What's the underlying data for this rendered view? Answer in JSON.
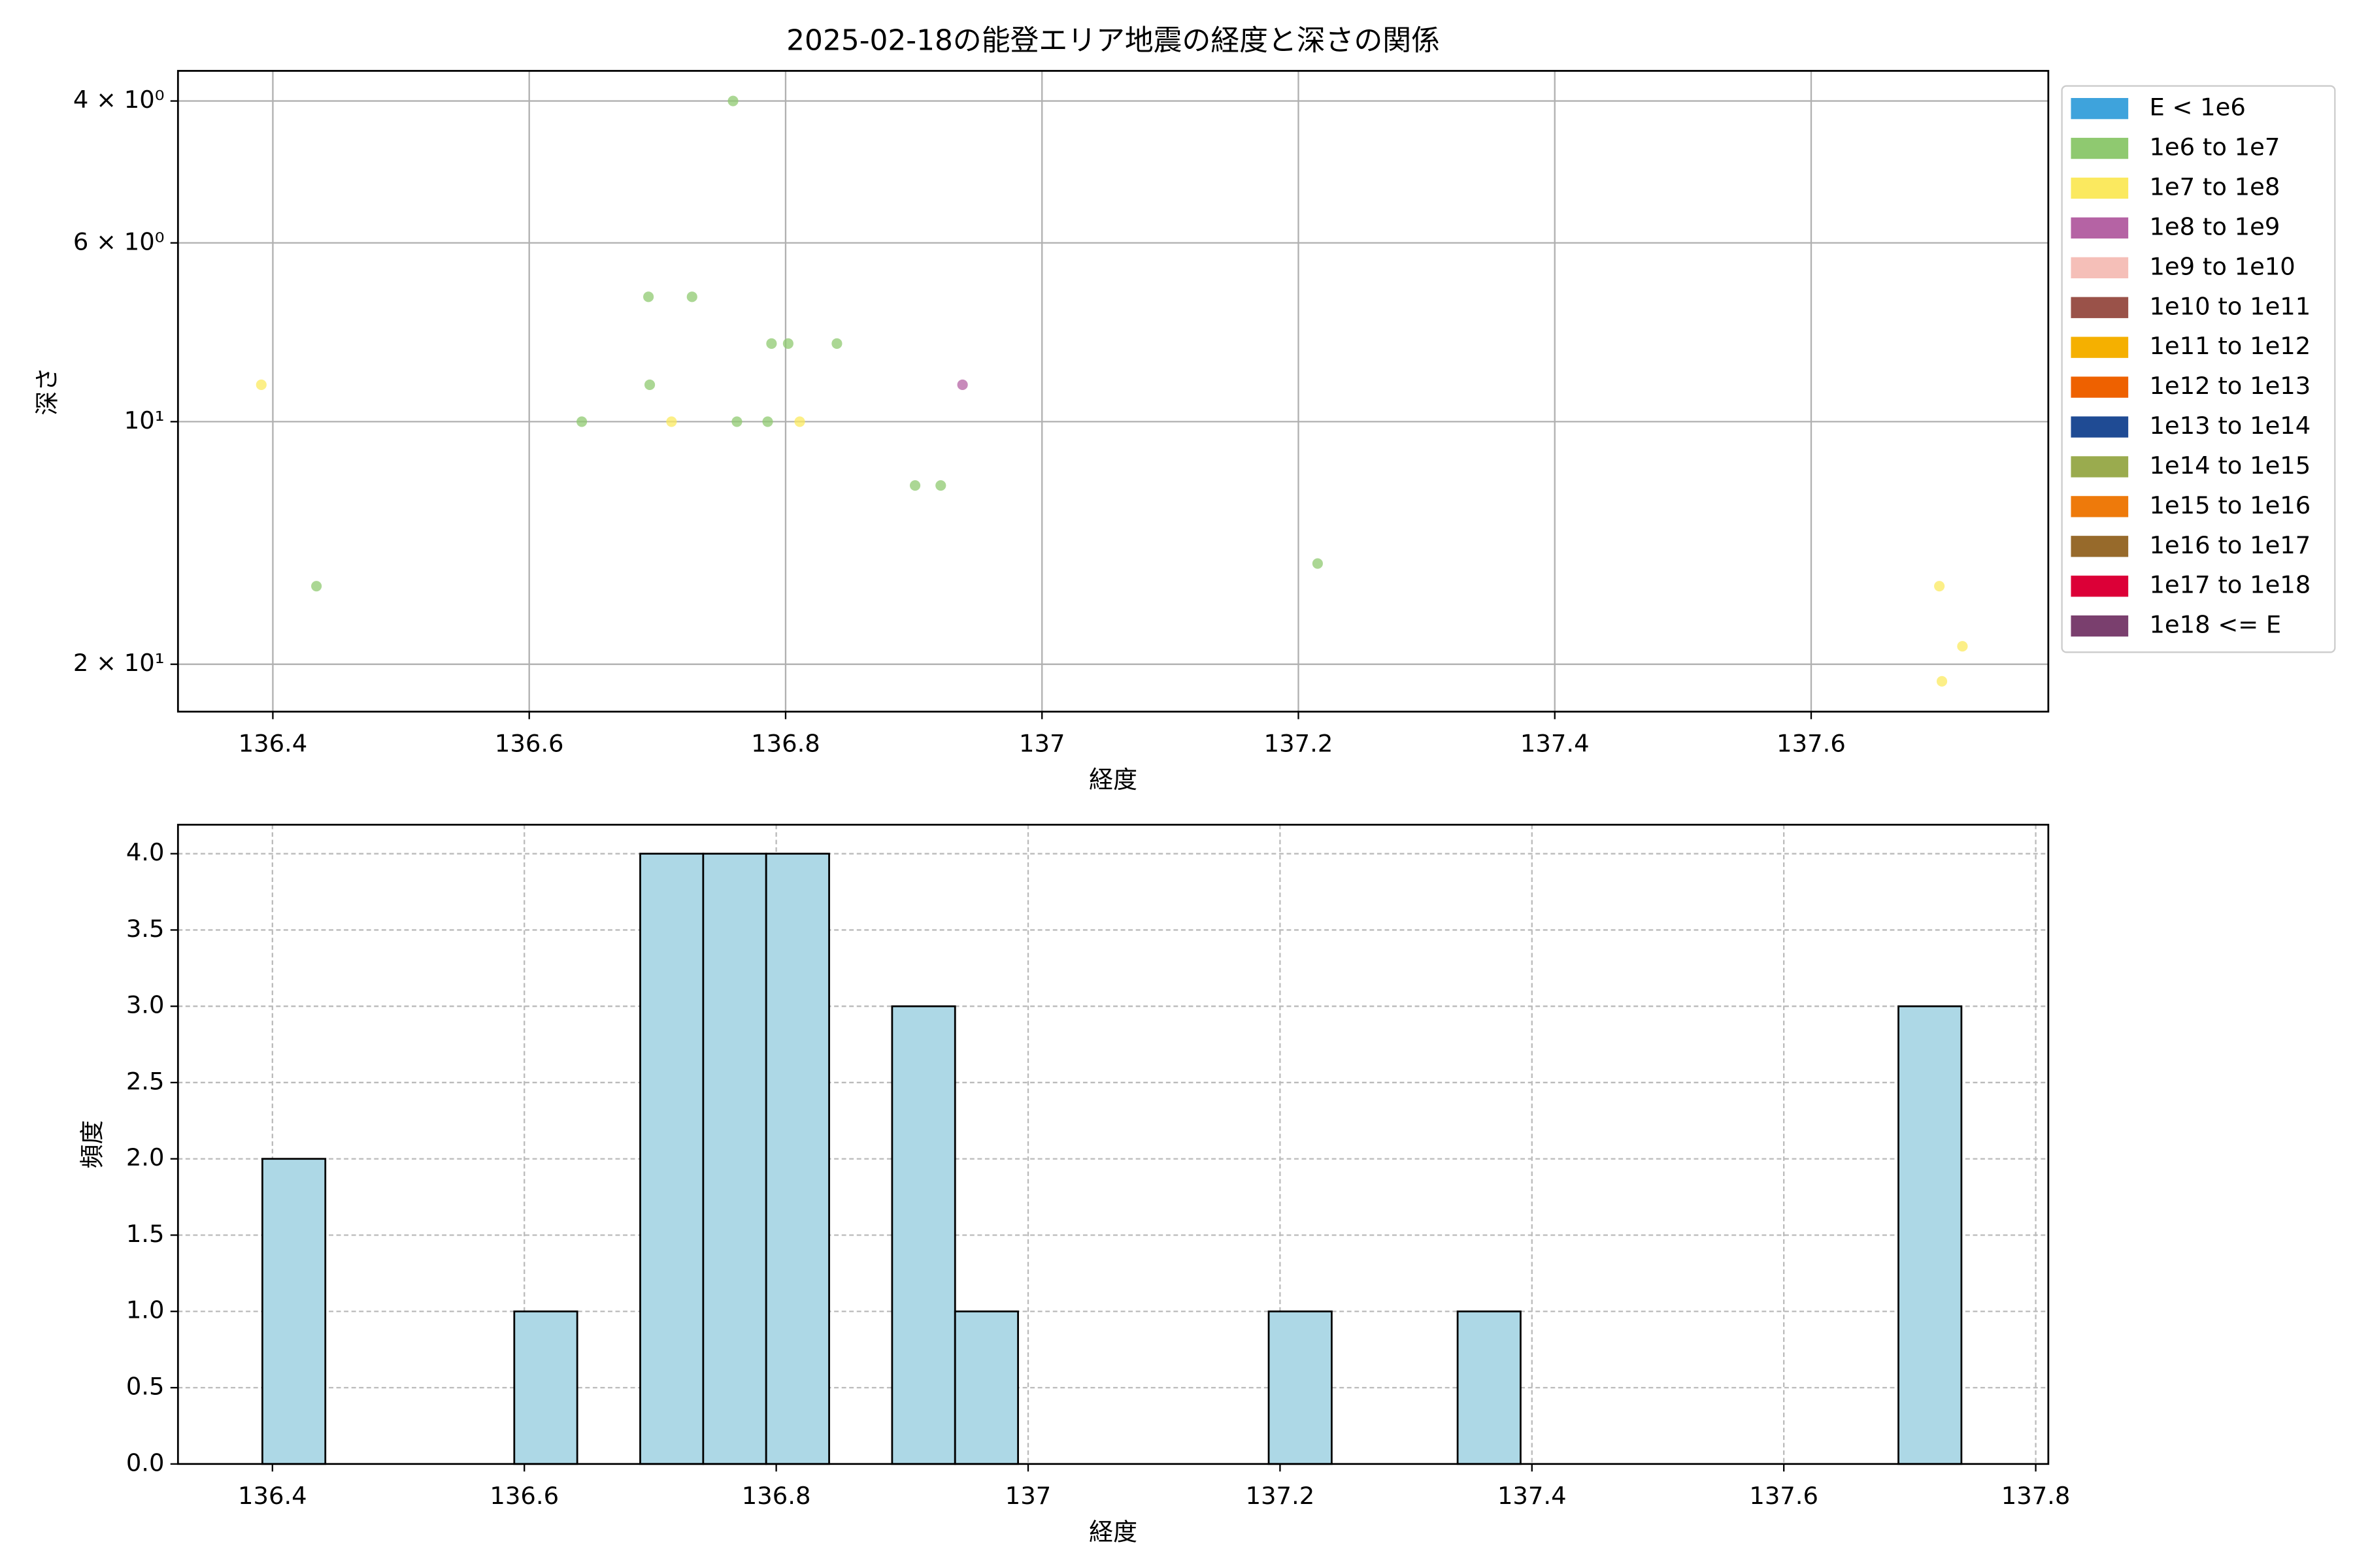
{
  "chart_data": [
    {
      "type": "scatter",
      "title": "2025-02-18の能登エリア地震の経度と深さの関係",
      "x_label": "経度",
      "y_label": "深さ",
      "xlim": [
        136.326,
        137.785
      ],
      "xticks": [
        136.4,
        136.6,
        136.8,
        137.0,
        137.2,
        137.4,
        137.6
      ],
      "ylim": [
        22.9,
        3.67
      ],
      "y_scale": "log",
      "yticks": [
        {
          "value": 4,
          "label": "4 × 10⁰"
        },
        {
          "value": 6,
          "label": "6 × 10⁰"
        },
        {
          "value": 10,
          "label": "10¹"
        },
        {
          "value": 20,
          "label": "2 × 10¹"
        }
      ],
      "grid": true,
      "legend": "outside right",
      "series": [
        {
          "name": "E < 1e6",
          "color": "#3ea3dc",
          "x": [],
          "values": []
        },
        {
          "name": "1e6 to 1e7",
          "color": "#8fc970",
          "x": [
            136.434,
            136.641,
            136.693,
            136.727,
            136.694,
            136.759,
            136.762,
            136.786,
            136.789,
            136.802,
            136.84,
            136.901,
            136.921,
            137.215
          ],
          "values": [
            16,
            10,
            7,
            7,
            9,
            4,
            10,
            10,
            8,
            8,
            8,
            12,
            12,
            15
          ]
        },
        {
          "name": "1e7 to 1e8",
          "color": "#fbe95f",
          "x": [
            136.391,
            136.711,
            136.811,
            137.7,
            137.718,
            137.702
          ],
          "values": [
            9,
            10,
            10,
            16,
            19,
            21
          ]
        },
        {
          "name": "1e8 to 1e9",
          "color": "#b563a4",
          "x": [
            136.938
          ],
          "values": [
            9
          ]
        },
        {
          "name": "1e9 to 1e10",
          "color": "#f5bfb8",
          "x": [],
          "values": []
        },
        {
          "name": "1e10 to 1e11",
          "color": "#9a5249",
          "x": [],
          "values": []
        },
        {
          "name": "1e11 to 1e12",
          "color": "#f5b000",
          "x": [],
          "values": []
        },
        {
          "name": "1e12 to 1e13",
          "color": "#ee6100",
          "x": [],
          "values": []
        },
        {
          "name": "1e13 to 1e14",
          "color": "#1f4b94",
          "x": [],
          "values": []
        },
        {
          "name": "1e14 to 1e15",
          "color": "#9aab4e",
          "x": [],
          "values": []
        },
        {
          "name": "1e15 to 1e16",
          "color": "#ee7a0b",
          "x": [],
          "values": []
        },
        {
          "name": "1e16 to 1e17",
          "color": "#976a2b",
          "x": [],
          "values": []
        },
        {
          "name": "1e17 to 1e18",
          "color": "#dc0037",
          "x": [],
          "values": []
        },
        {
          "name": "1e18 <= E",
          "color": "#7a3f6e",
          "x": [],
          "values": []
        }
      ]
    },
    {
      "type": "histogram",
      "x_label": "経度",
      "y_label": "頻度",
      "color": "#add8e6",
      "bins": [
        136.392,
        136.442,
        136.492,
        136.542,
        136.592,
        136.642,
        136.692,
        136.742,
        136.792,
        136.842,
        136.892,
        136.942,
        136.992,
        137.041,
        137.091,
        137.141,
        137.191,
        137.241,
        137.291,
        137.341,
        137.391,
        137.441,
        137.491,
        137.541,
        137.591,
        137.641,
        137.691,
        137.741
      ],
      "values": [
        2,
        0,
        0,
        0,
        1,
        0,
        4,
        4,
        4,
        0,
        3,
        1,
        0,
        0,
        0,
        0,
        1,
        0,
        0,
        1,
        0,
        0,
        0,
        0,
        0,
        0,
        3
      ],
      "xlim": [
        136.325,
        137.81
      ],
      "xticks": [
        136.4,
        136.6,
        136.8,
        137.0,
        137.2,
        137.4,
        137.6,
        137.8
      ],
      "ylim": [
        0,
        4.19
      ],
      "yticks": [
        {
          "value": 0,
          "label": "0.0"
        },
        {
          "value": 0.5,
          "label": "0.5"
        },
        {
          "value": 1,
          "label": "1.0"
        },
        {
          "value": 1.5,
          "label": "1.5"
        },
        {
          "value": 2,
          "label": "2.0"
        },
        {
          "value": 2.5,
          "label": "2.5"
        },
        {
          "value": 3,
          "label": "3.0"
        },
        {
          "value": 3.5,
          "label": "3.5"
        },
        {
          "value": 4,
          "label": "4.0"
        }
      ],
      "grid": true
    }
  ]
}
